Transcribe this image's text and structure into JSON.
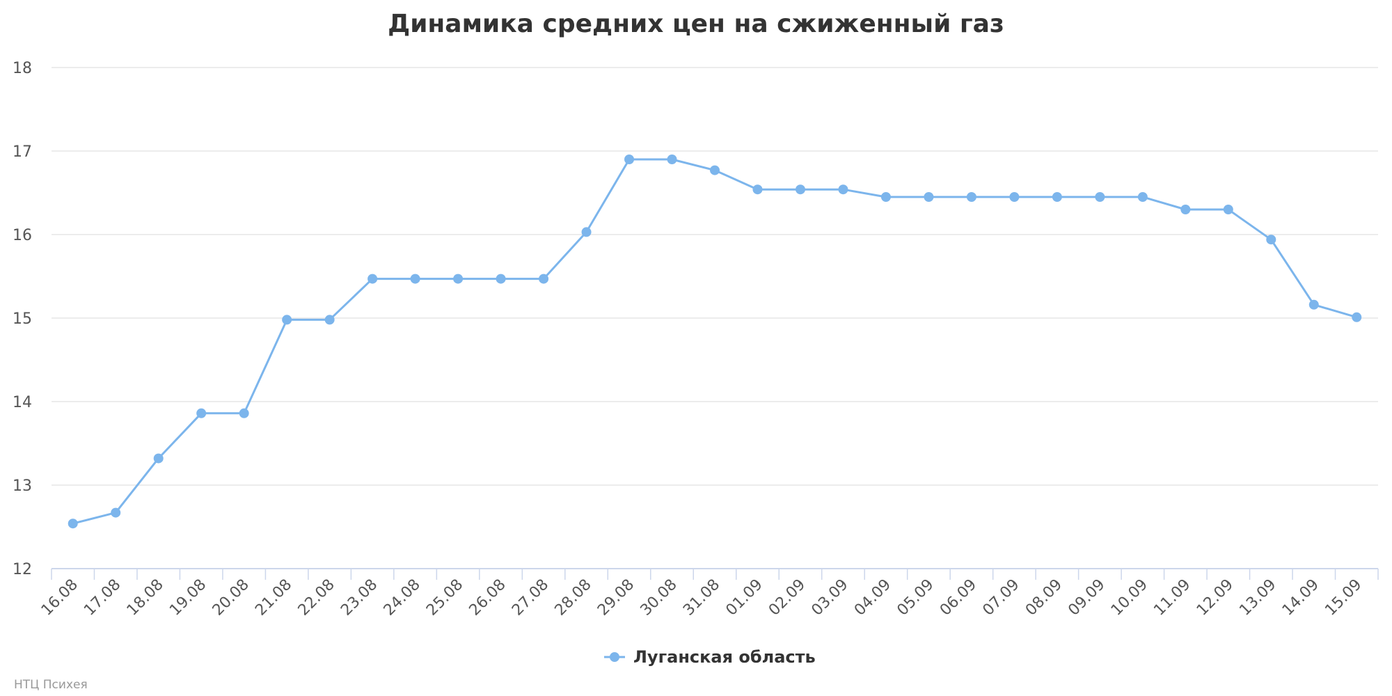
{
  "chart_data": {
    "type": "line",
    "title": "Динамика средних цен на сжиженный газ",
    "xlabel": "",
    "ylabel": "",
    "categories": [
      "16.08",
      "17.08",
      "18.08",
      "19.08",
      "20.08",
      "21.08",
      "22.08",
      "23.08",
      "24.08",
      "25.08",
      "26.08",
      "27.08",
      "28.08",
      "29.08",
      "30.08",
      "31.08",
      "01.09",
      "02.09",
      "03.09",
      "04.09",
      "05.09",
      "06.09",
      "07.09",
      "08.09",
      "09.09",
      "10.09",
      "11.09",
      "12.09",
      "13.09",
      "14.09",
      "15.09"
    ],
    "series": [
      {
        "name": "Луганская область",
        "color": "#7cb5ec",
        "values": [
          12.54,
          12.67,
          13.32,
          13.86,
          13.86,
          14.98,
          14.98,
          15.47,
          15.47,
          15.47,
          15.47,
          15.47,
          16.03,
          16.9,
          16.9,
          16.77,
          16.54,
          16.54,
          16.54,
          16.45,
          16.45,
          16.45,
          16.45,
          16.45,
          16.45,
          16.45,
          16.3,
          16.3,
          15.94,
          15.16,
          15.01
        ]
      }
    ],
    "ylim": [
      12,
      18
    ],
    "yticks": [
      12,
      13,
      14,
      15,
      16,
      17,
      18
    ],
    "grid": true,
    "legend_position": "bottom-center"
  },
  "credit": "НТЦ Психея"
}
